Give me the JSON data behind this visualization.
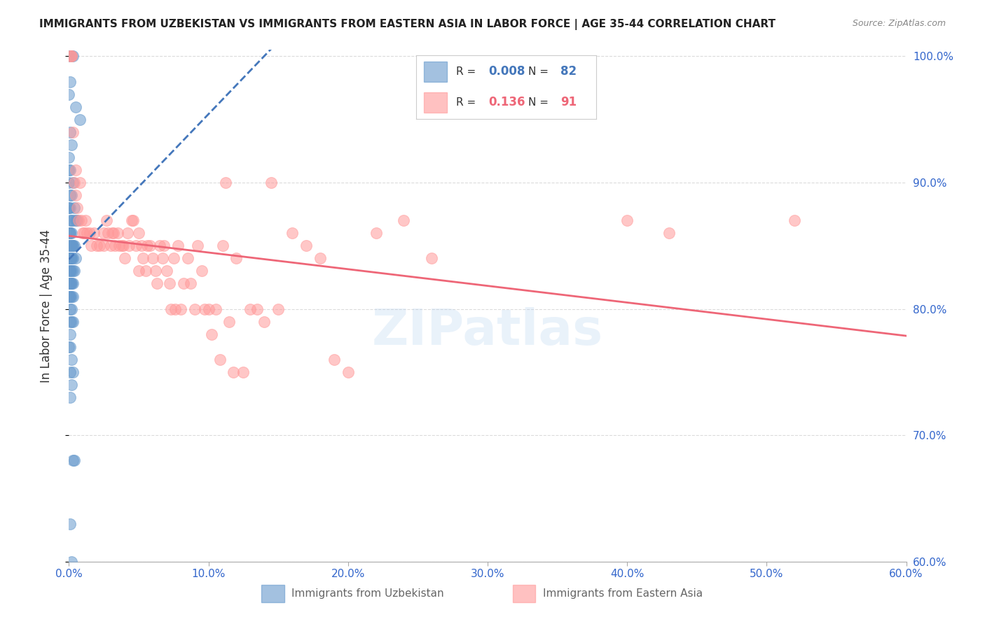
{
  "title": "IMMIGRANTS FROM UZBEKISTAN VS IMMIGRANTS FROM EASTERN ASIA IN LABOR FORCE | AGE 35-44 CORRELATION CHART",
  "source": "Source: ZipAtlas.com",
  "ylabel": "In Labor Force | Age 35-44",
  "xlim": [
    0.0,
    0.6
  ],
  "ylim": [
    0.6,
    1.005
  ],
  "xticks": [
    0.0,
    0.1,
    0.2,
    0.3,
    0.4,
    0.5,
    0.6
  ],
  "xtick_labels": [
    "0.0%",
    "10.0%",
    "20.0%",
    "30.0%",
    "40.0%",
    "50.0%",
    "60.0%"
  ],
  "yticks": [
    0.6,
    0.7,
    0.8,
    0.9,
    1.0
  ],
  "ytick_labels_right": [
    "60.0%",
    "70.0%",
    "80.0%",
    "90.0%",
    "100.0%"
  ],
  "legend_R_uzb": "0.008",
  "legend_N_uzb": "82",
  "legend_R_ea": "0.136",
  "legend_N_ea": "91",
  "blue_color": "#6699CC",
  "pink_color": "#FF9999",
  "trend_blue": "#4477BB",
  "trend_pink": "#EE6677",
  "axis_label_color": "#3366CC",
  "background_color": "#FFFFFF",
  "grid_color": "#CCCCCC",
  "watermark": "ZIPatlas",
  "uzb_x": [
    0.0,
    0.002,
    0.003,
    0.001,
    0.0,
    0.005,
    0.008,
    0.001,
    0.002,
    0.0,
    0.0,
    0.001,
    0.0,
    0.003,
    0.001,
    0.002,
    0.0,
    0.0,
    0.001,
    0.004,
    0.005,
    0.001,
    0.002,
    0.006,
    0.003,
    0.001,
    0.002,
    0.001,
    0.0,
    0.002,
    0.001,
    0.003,
    0.002,
    0.001,
    0.004,
    0.002,
    0.001,
    0.003,
    0.002,
    0.001,
    0.005,
    0.001,
    0.002,
    0.003,
    0.001,
    0.0,
    0.001,
    0.002,
    0.003,
    0.001,
    0.001,
    0.002,
    0.004,
    0.001,
    0.003,
    0.002,
    0.001,
    0.0,
    0.002,
    0.001,
    0.003,
    0.001,
    0.002,
    0.001,
    0.0,
    0.001,
    0.002,
    0.001,
    0.003,
    0.002,
    0.001,
    0.0,
    0.001,
    0.002,
    0.003,
    0.001,
    0.002,
    0.001,
    0.003,
    0.004,
    0.001,
    0.002
  ],
  "uzb_y": [
    1.0,
    1.0,
    1.0,
    0.98,
    0.97,
    0.96,
    0.95,
    0.94,
    0.93,
    0.92,
    0.91,
    0.91,
    0.9,
    0.9,
    0.89,
    0.89,
    0.88,
    0.88,
    0.88,
    0.88,
    0.87,
    0.87,
    0.87,
    0.87,
    0.87,
    0.86,
    0.86,
    0.86,
    0.86,
    0.85,
    0.85,
    0.85,
    0.85,
    0.85,
    0.85,
    0.85,
    0.85,
    0.85,
    0.85,
    0.85,
    0.84,
    0.84,
    0.84,
    0.84,
    0.84,
    0.84,
    0.84,
    0.84,
    0.83,
    0.83,
    0.83,
    0.83,
    0.83,
    0.83,
    0.82,
    0.82,
    0.82,
    0.82,
    0.82,
    0.82,
    0.81,
    0.81,
    0.81,
    0.81,
    0.81,
    0.8,
    0.8,
    0.79,
    0.79,
    0.79,
    0.78,
    0.77,
    0.77,
    0.76,
    0.75,
    0.75,
    0.74,
    0.73,
    0.68,
    0.68,
    0.63,
    0.6
  ],
  "ea_x": [
    0.001,
    0.002,
    0.002,
    0.003,
    0.004,
    0.005,
    0.005,
    0.006,
    0.007,
    0.008,
    0.009,
    0.01,
    0.011,
    0.012,
    0.013,
    0.015,
    0.016,
    0.018,
    0.02,
    0.022,
    0.025,
    0.025,
    0.027,
    0.028,
    0.03,
    0.031,
    0.032,
    0.033,
    0.035,
    0.036,
    0.038,
    0.039,
    0.04,
    0.042,
    0.043,
    0.045,
    0.046,
    0.048,
    0.05,
    0.05,
    0.052,
    0.053,
    0.055,
    0.056,
    0.058,
    0.06,
    0.062,
    0.063,
    0.065,
    0.067,
    0.068,
    0.07,
    0.072,
    0.073,
    0.075,
    0.076,
    0.078,
    0.08,
    0.082,
    0.085,
    0.087,
    0.09,
    0.092,
    0.095,
    0.097,
    0.1,
    0.102,
    0.105,
    0.108,
    0.11,
    0.112,
    0.115,
    0.118,
    0.12,
    0.125,
    0.13,
    0.135,
    0.14,
    0.145,
    0.15,
    0.16,
    0.17,
    0.18,
    0.19,
    0.2,
    0.22,
    0.24,
    0.26,
    0.4,
    0.43,
    0.52
  ],
  "ea_y": [
    1.0,
    1.0,
    1.0,
    0.94,
    0.9,
    0.91,
    0.89,
    0.88,
    0.87,
    0.9,
    0.87,
    0.86,
    0.86,
    0.87,
    0.86,
    0.86,
    0.85,
    0.86,
    0.85,
    0.85,
    0.86,
    0.85,
    0.87,
    0.86,
    0.85,
    0.86,
    0.86,
    0.85,
    0.86,
    0.85,
    0.85,
    0.85,
    0.84,
    0.86,
    0.85,
    0.87,
    0.87,
    0.85,
    0.86,
    0.83,
    0.85,
    0.84,
    0.83,
    0.85,
    0.85,
    0.84,
    0.83,
    0.82,
    0.85,
    0.84,
    0.85,
    0.83,
    0.82,
    0.8,
    0.84,
    0.8,
    0.85,
    0.8,
    0.82,
    0.84,
    0.82,
    0.8,
    0.85,
    0.83,
    0.8,
    0.8,
    0.78,
    0.8,
    0.76,
    0.85,
    0.9,
    0.79,
    0.75,
    0.84,
    0.75,
    0.8,
    0.8,
    0.79,
    0.9,
    0.8,
    0.86,
    0.85,
    0.84,
    0.76,
    0.75,
    0.86,
    0.87,
    0.84,
    0.87,
    0.86,
    0.87
  ]
}
